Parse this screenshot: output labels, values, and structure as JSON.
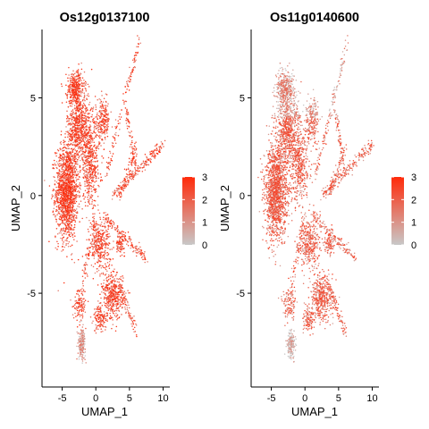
{
  "chart_data": [
    {
      "type": "scatter",
      "title": "Os12g0137100",
      "xlabel": "UMAP_1",
      "ylabel": "UMAP_2",
      "xlim": [
        -8,
        11
      ],
      "ylim": [
        -9.8,
        8.5
      ],
      "xticks": [
        -5,
        0,
        5,
        10
      ],
      "yticks": [
        -5,
        0,
        5
      ],
      "colorbar": {
        "min": 0,
        "max": 3,
        "ticks": [
          0,
          1,
          2,
          3
        ],
        "low_color": "#c8c8c8",
        "high_color": "#ff2a0a"
      },
      "expression_level": "high"
    },
    {
      "type": "scatter",
      "title": "Os11g0140600",
      "xlabel": "UMAP_1",
      "ylabel": "UMAP_2",
      "xlim": [
        -8,
        11
      ],
      "ylim": [
        -9.8,
        8.5
      ],
      "xticks": [
        -5,
        0,
        5,
        10
      ],
      "yticks": [
        -5,
        0,
        5
      ],
      "colorbar": {
        "min": 0,
        "max": 3,
        "ticks": [
          0,
          1,
          2,
          3
        ],
        "low_color": "#c8c8c8",
        "high_color": "#ff2a0a"
      },
      "expression_level": "moderate"
    }
  ]
}
